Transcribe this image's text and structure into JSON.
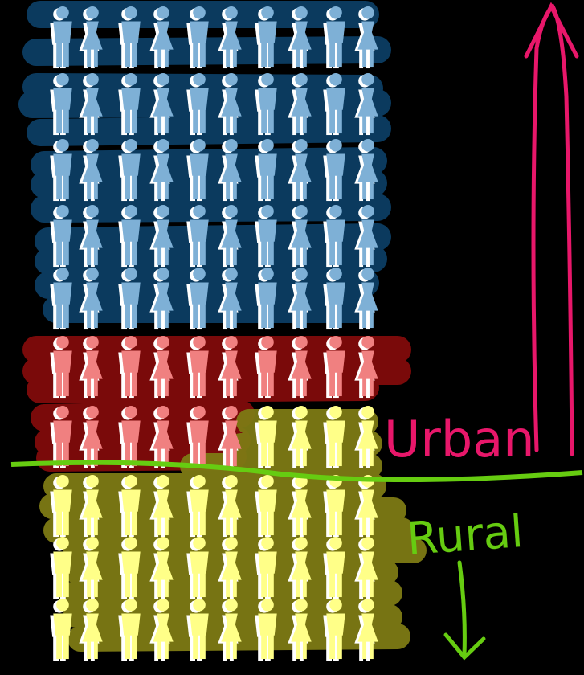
{
  "annotations": {
    "urban": "Urban",
    "rural": "Rural"
  }
}
